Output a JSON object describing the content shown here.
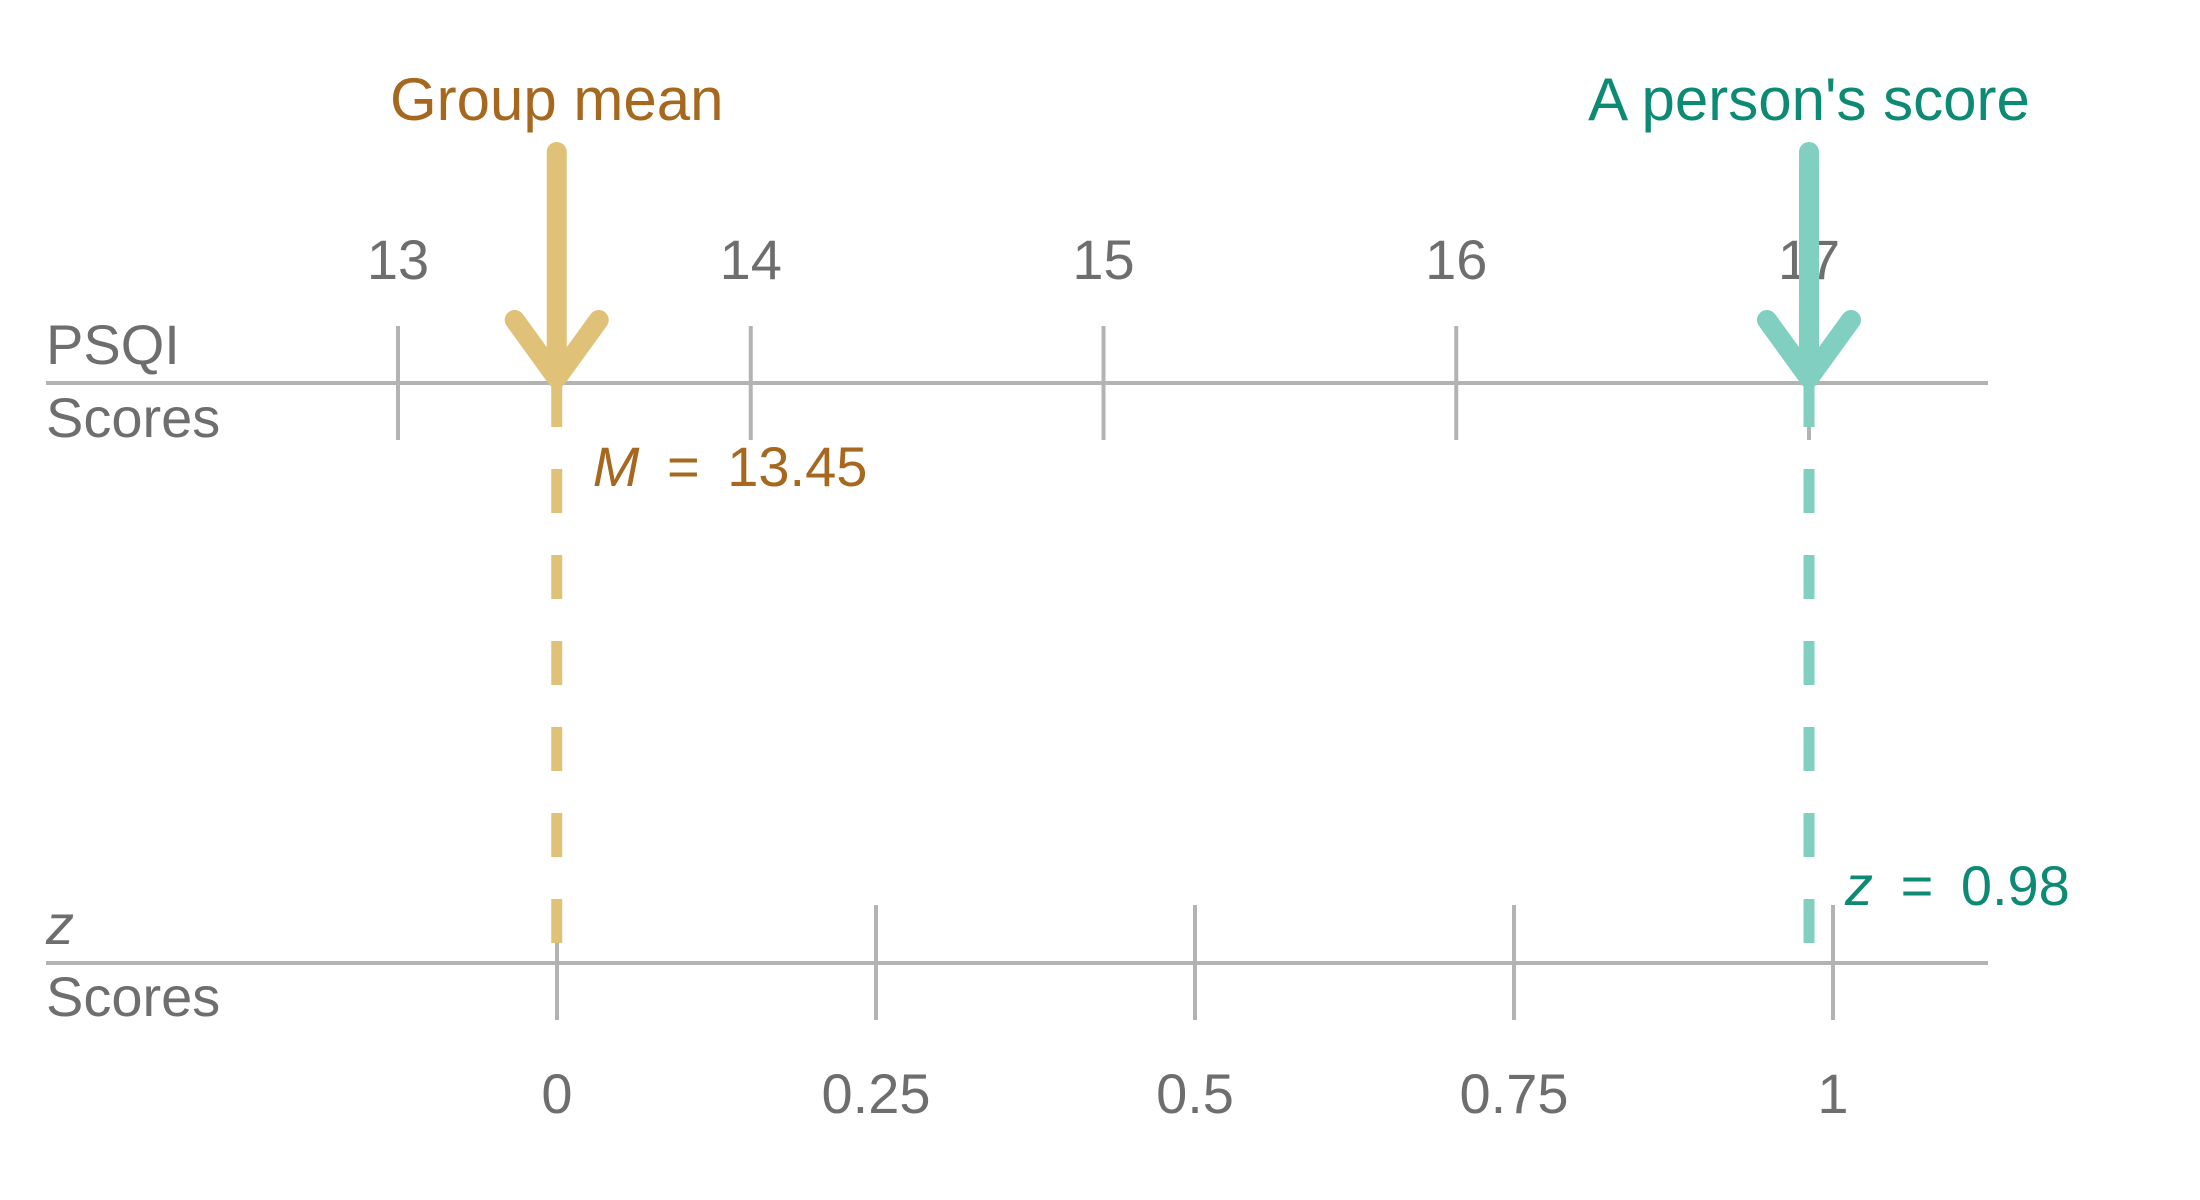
{
  "colors": {
    "axis": "#b3b3b3",
    "text": "#6e6e6e",
    "mean_arrow": "#e0c178",
    "mean_text": "#a6671f",
    "person_arrow": "#80cfc0",
    "person_text": "#0d8a74"
  },
  "psqi_axis": {
    "name_line1": "PSQI",
    "name_line2": "Scores",
    "ticks": [
      {
        "value": 13,
        "label": "13"
      },
      {
        "value": 14,
        "label": "14"
      },
      {
        "value": 15,
        "label": "15"
      },
      {
        "value": 16,
        "label": "16"
      },
      {
        "value": 17,
        "label": "17"
      }
    ]
  },
  "z_axis": {
    "name_line1": "z",
    "name_line2": "Scores",
    "ticks": [
      {
        "value": 0,
        "label": "0"
      },
      {
        "value": 0.25,
        "label": "0.25"
      },
      {
        "value": 0.5,
        "label": "0.5"
      },
      {
        "value": 0.75,
        "label": "0.75"
      },
      {
        "value": 1,
        "label": "1"
      }
    ]
  },
  "group_mean": {
    "title": "Group mean",
    "symbol": "M",
    "equals": "=",
    "value_text": "13.45",
    "psqi_value": 13.45,
    "z_value": 0
  },
  "person": {
    "title": "A person's score",
    "symbol": "z",
    "equals": "=",
    "value_text": "0.98",
    "psqi_value": 17,
    "z_value": 0.98
  }
}
